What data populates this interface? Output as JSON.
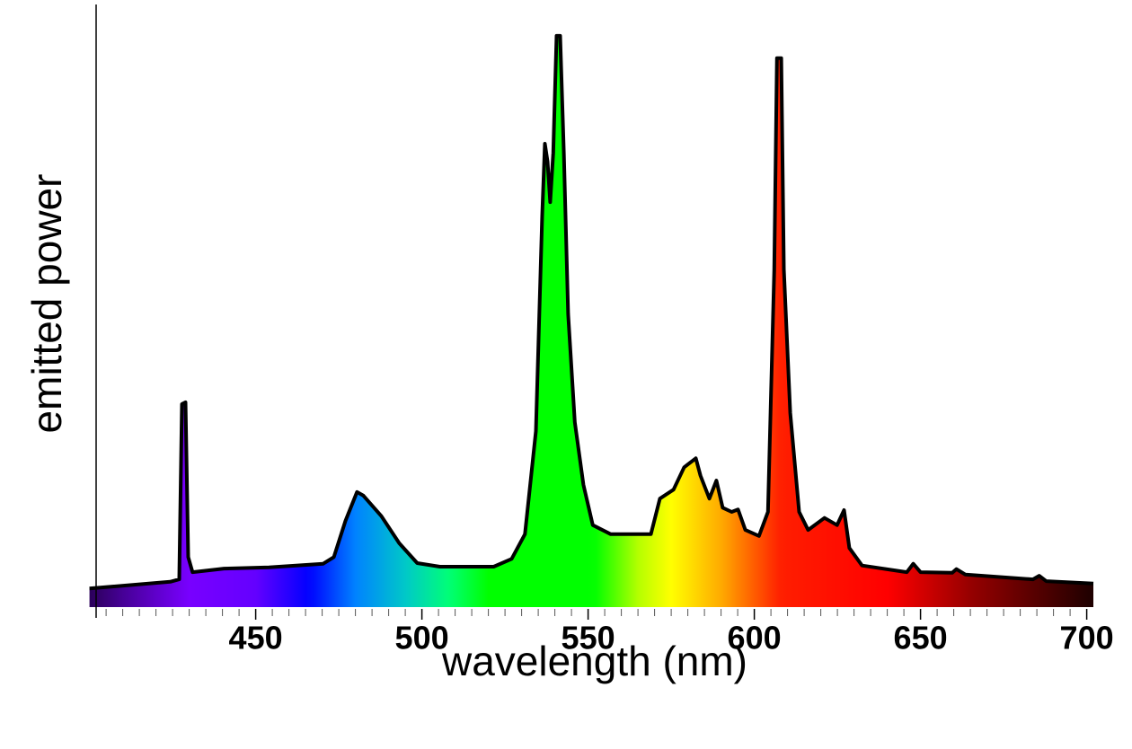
{
  "chart_data": {
    "type": "area",
    "xlabel": "wavelength (nm)",
    "ylabel": "emitted power",
    "x": [
      400,
      424.3,
      427,
      427.8,
      428.9,
      429.7,
      431,
      440.5,
      454,
      470.3,
      473.5,
      477,
      480.5,
      482.4,
      487.8,
      493.2,
      498.6,
      505.4,
      521.6,
      527,
      531,
      534.3,
      536.2,
      537,
      537.8,
      538.6,
      539.5,
      540.5,
      541.6,
      542.7,
      544,
      546,
      548.6,
      551.4,
      556.8,
      568.9,
      571.6,
      575.7,
      578.9,
      582.4,
      583.8,
      586.5,
      588.6,
      590.5,
      593.2,
      595.1,
      597.3,
      601.4,
      604.1,
      606,
      606.8,
      608.1,
      608.9,
      610.8,
      613.5,
      616.2,
      621.1,
      624.9,
      627,
      628.6,
      632.4,
      645.9,
      647.8,
      650,
      659.5,
      660.8,
      663.5,
      683.8,
      685.7,
      687.8,
      702
    ],
    "values": [
      3.1,
      4.2,
      4.6,
      33.7,
      34,
      8.3,
      5.8,
      6.4,
      6.6,
      7.2,
      8.3,
      14.3,
      19.1,
      18.5,
      15.1,
      10.6,
      7.3,
      6.7,
      6.7,
      8.0,
      12.1,
      29.2,
      65,
      76.9,
      73.9,
      67.2,
      75.4,
      94.8,
      94.8,
      75.4,
      48.6,
      30.7,
      20.3,
      13.6,
      12.1,
      12.1,
      18.0,
      19.5,
      23.2,
      24.7,
      21.8,
      18.0,
      21.0,
      16.5,
      15.8,
      16.2,
      12.8,
      11.8,
      15.8,
      56,
      91.1,
      91.1,
      56,
      32.2,
      15.8,
      12.8,
      14.8,
      13.6,
      16.1,
      9.8,
      6.9,
      5.8,
      7.2,
      5.8,
      5.7,
      6.3,
      5.4,
      4.6,
      5.2,
      4.3,
      3.9
    ],
    "color": "#000000",
    "xlim": [
      402,
      702
    ],
    "ylim": [
      0,
      100
    ],
    "xticks": [
      450,
      500,
      550,
      600,
      650,
      700
    ],
    "xminorticks": [
      405,
      410,
      415,
      420,
      425,
      430,
      435,
      440,
      445,
      455,
      460,
      465,
      470,
      475,
      480,
      485,
      490,
      495,
      505,
      510,
      515,
      520,
      525,
      530,
      535,
      540,
      545,
      555,
      560,
      565,
      570,
      575,
      580,
      585,
      590,
      595,
      605,
      610,
      615,
      620,
      625,
      630,
      635,
      640,
      645,
      655,
      660,
      665,
      670,
      675,
      680,
      685,
      690,
      695
    ]
  }
}
